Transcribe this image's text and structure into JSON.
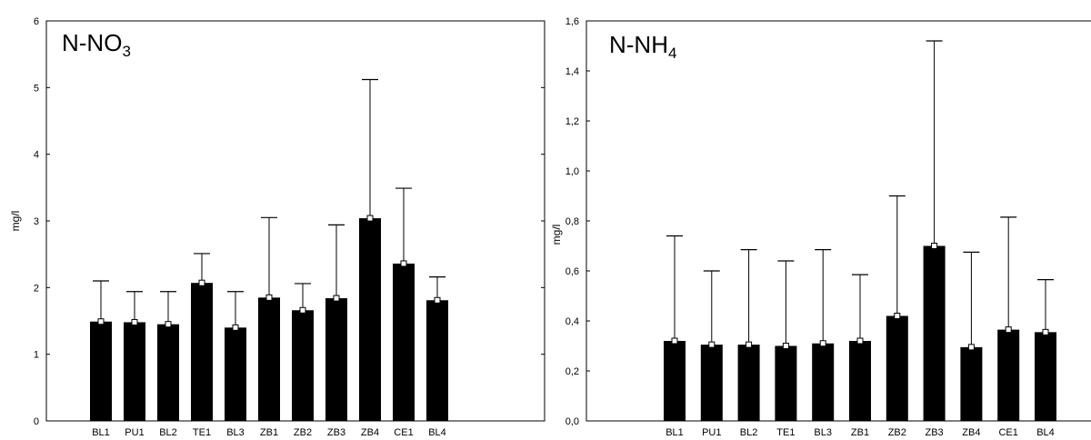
{
  "chart_data": [
    {
      "type": "bar",
      "title": "N-NO",
      "title_sub": "3",
      "ylabel": "mg/l",
      "ylim": [
        0,
        6
      ],
      "yticks": [
        "0",
        "1",
        "2",
        "3",
        "4",
        "5",
        "6"
      ],
      "grid": false,
      "error_bars": true,
      "categories": [
        "BL1",
        "PU1",
        "BL2",
        "TE1",
        "BL3",
        "ZB1",
        "ZB2",
        "ZB3",
        "ZB4",
        "CE1",
        "BL4"
      ],
      "values": [
        1.49,
        1.48,
        1.45,
        2.07,
        1.4,
        1.85,
        1.66,
        1.84,
        3.04,
        2.36,
        1.81
      ],
      "error_upper": [
        2.1,
        1.94,
        1.94,
        2.51,
        1.94,
        3.05,
        2.06,
        2.94,
        5.12,
        3.49,
        2.16
      ],
      "bar_color": "#000000"
    },
    {
      "type": "bar",
      "title": "N-NH",
      "title_sub": "4",
      "ylabel": "mg/l",
      "ylim": [
        0,
        1.6
      ],
      "yticks": [
        "0,0",
        "0,2",
        "0,4",
        "0,6",
        "0,8",
        "1,0",
        "1,2",
        "1,4",
        "1,6"
      ],
      "grid": false,
      "error_bars": true,
      "categories": [
        "BL1",
        "PU1",
        "BL2",
        "TE1",
        "BL3",
        "ZB1",
        "ZB2",
        "ZB3",
        "ZB4",
        "CE1",
        "BL4"
      ],
      "values": [
        0.32,
        0.305,
        0.305,
        0.3,
        0.31,
        0.32,
        0.42,
        0.7,
        0.295,
        0.365,
        0.355
      ],
      "error_upper": [
        0.74,
        0.6,
        0.685,
        0.64,
        0.685,
        0.585,
        0.9,
        1.52,
        0.675,
        0.815,
        0.565
      ],
      "bar_color": "#000000"
    }
  ]
}
